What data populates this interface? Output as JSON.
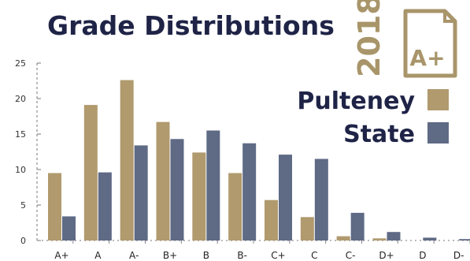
{
  "chart_data": {
    "type": "bar",
    "title": "Grade Distributions",
    "year": "2018",
    "badge_grade": "A+",
    "categories": [
      "A+",
      "A",
      "A-",
      "B+",
      "B",
      "B-",
      "C+",
      "C",
      "C-",
      "D+",
      "D",
      "D-"
    ],
    "series": [
      {
        "name": "Pulteney",
        "color": "#b09a6e",
        "values": [
          9.5,
          19.1,
          22.6,
          16.7,
          12.4,
          9.5,
          5.7,
          3.3,
          0.6,
          0.3,
          0.0,
          0.0
        ]
      },
      {
        "name": "State",
        "color": "#5f6a85",
        "values": [
          3.4,
          9.6,
          13.4,
          14.3,
          15.5,
          13.7,
          12.1,
          11.5,
          3.9,
          1.2,
          0.4,
          0.2
        ]
      }
    ],
    "ylim": [
      0,
      25
    ],
    "yticks": [
      0,
      5,
      10,
      15,
      20,
      25
    ],
    "xlabel": "",
    "ylabel": "",
    "legend_position": "right",
    "grid": false
  }
}
